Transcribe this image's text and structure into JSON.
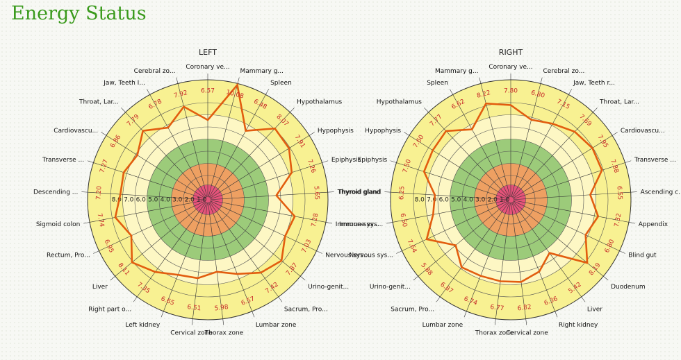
{
  "page": {
    "title": "Energy Status"
  },
  "chart_data": [
    {
      "type": "radar",
      "title": "LEFT",
      "scale_labels": [
        "8.0",
        "7.0",
        "6.0",
        "5.0",
        "4.0",
        "3.0",
        "2.0",
        "1.0"
      ],
      "zone_colors": [
        "#f8f192",
        "#fdf7c4",
        "#9ccb7a",
        "#eea062",
        "#e6537a"
      ],
      "series_color": "#e25d0f",
      "axes": [
        "Coronary ve...",
        "Mammary g...",
        "Spleen",
        "Hypothalamus",
        "Hypophysis",
        "Epiphysis",
        "Thyroid gland",
        "Immune sys...",
        "Nervous sys...",
        "Urino-genit...",
        "Sacrum, Pro...",
        "Lumbar zone",
        "Thorax zone",
        "Cervical zone",
        "Left kidney",
        "Right part o...",
        "Liver",
        "Rectum, Pro...",
        "Sigmoid colon",
        "Descending ...",
        "Transverse ...",
        "Cardiovascu...",
        "Throat, Lar...",
        "Jaw, Teeth I...",
        "Cerebral zo..."
      ],
      "values": [
        6.57,
        10.08,
        6.48,
        8.07,
        7.91,
        7.26,
        5.65,
        7.28,
        7.03,
        7.87,
        7.42,
        6.57,
        5.98,
        6.51,
        6.65,
        7.35,
        8.11,
        6.95,
        7.74,
        7.2,
        7.27,
        6.86,
        7.79,
        6.78,
        7.92
      ]
    },
    {
      "type": "radar",
      "title": "RIGHT",
      "scale_labels": [
        "8.0",
        "7.0",
        "6.0",
        "5.0",
        "4.0",
        "3.0",
        "2.0",
        "1.0"
      ],
      "zone_colors": [
        "#f8f192",
        "#fdf7c4",
        "#9ccb7a",
        "#eea062",
        "#e6537a"
      ],
      "series_color": "#e25d0f",
      "axes": [
        "Coronary ve...",
        "Cerebral zo...",
        "Jaw, Teeth r...",
        "Throat, Lar...",
        "Cardiovascu...",
        "Transverse ...",
        "Ascending c...",
        "Appendix",
        "Blind gut",
        "Duodenum",
        "Liver",
        "Right kidney",
        "Cervical zone",
        "Thorax zone",
        "Lumbar zone",
        "Sacrum, Pro...",
        "Urino-genit...",
        "Nervous sys...",
        "Immune sys...",
        "Thyroid gland",
        "Epiphysis",
        "Hypophysis",
        "Hypothalamus",
        "Spleen",
        "Mammary g..."
      ],
      "values": [
        7.8,
        6.8,
        7.15,
        7.69,
        7.95,
        7.88,
        6.55,
        7.32,
        6.8,
        8.19,
        5.42,
        6.36,
        6.82,
        6.77,
        6.74,
        6.87,
        5.88,
        7.64,
        6.5,
        6.25,
        7.5,
        7.6,
        7.77,
        6.62,
        8.22
      ]
    }
  ]
}
